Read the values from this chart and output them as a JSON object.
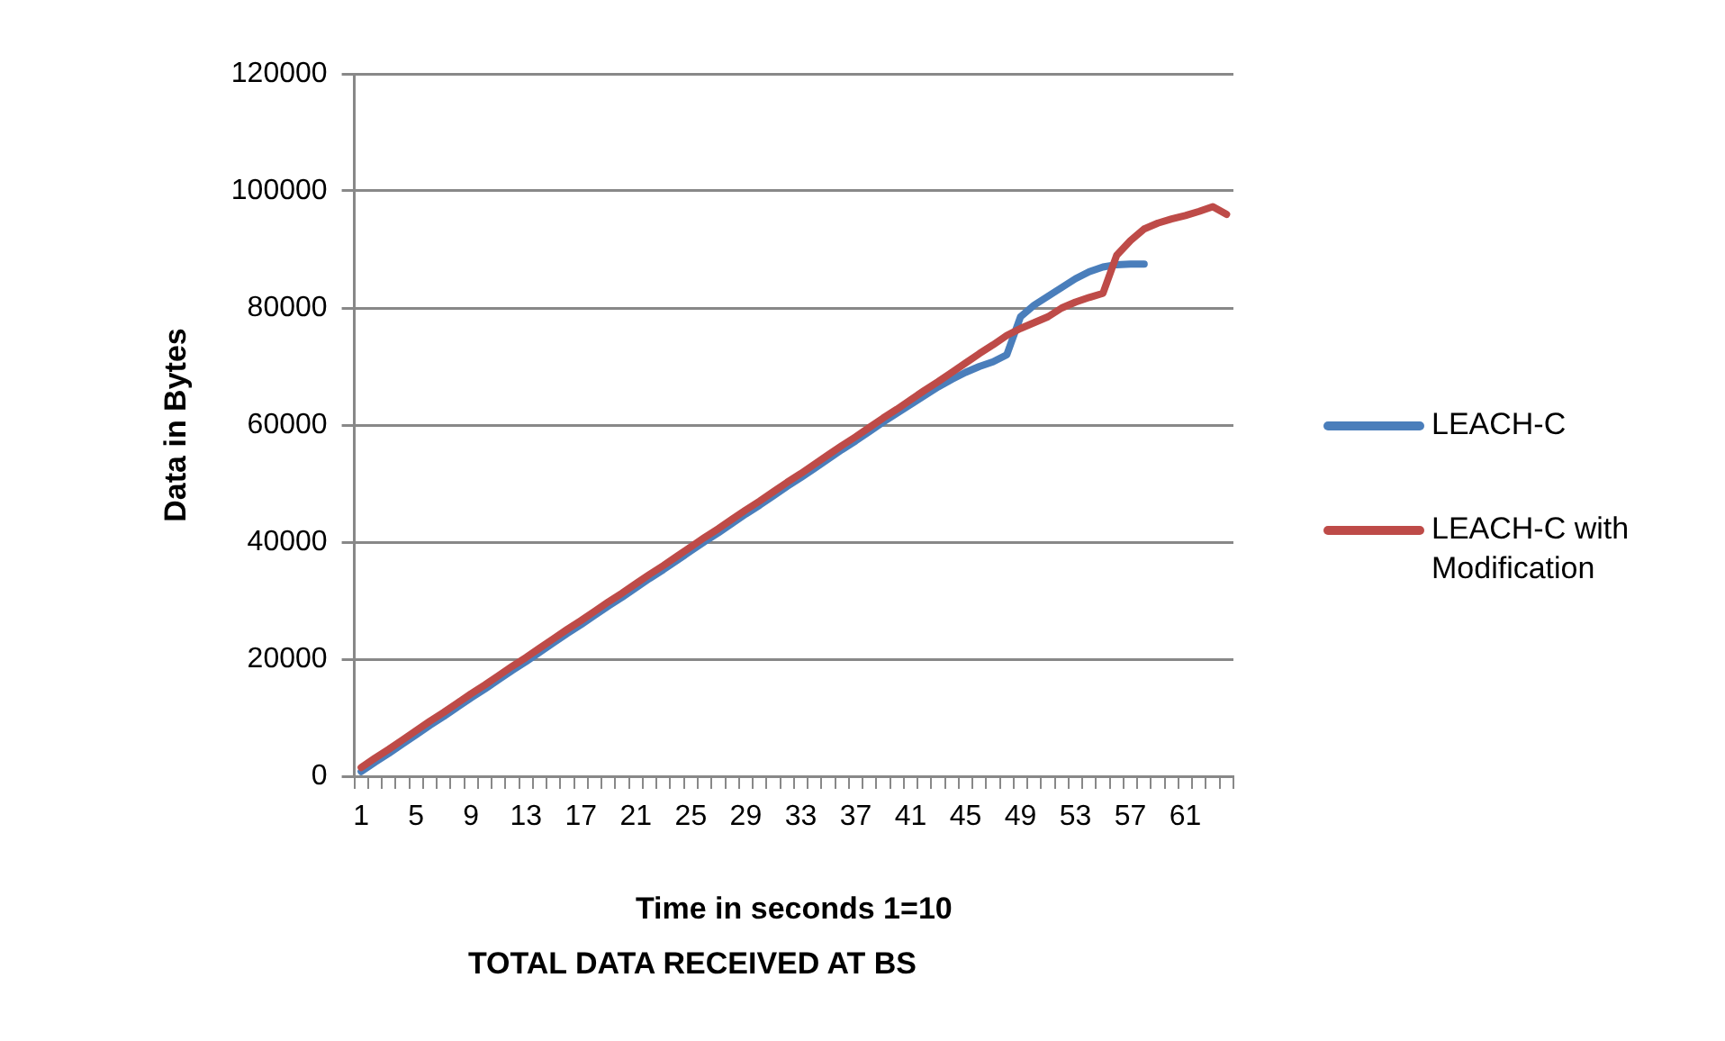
{
  "chart_data": {
    "type": "line",
    "title": "TOTAL DATA RECEIVED AT BS",
    "xlabel": "Time in seconds 1=10",
    "ylabel": "Data in Bytes",
    "categories": [
      "1",
      null,
      null,
      null,
      "5",
      null,
      null,
      null,
      "9",
      null,
      null,
      null,
      "13",
      null,
      null,
      null,
      "17",
      null,
      null,
      null,
      "21",
      null,
      null,
      null,
      "25",
      null,
      null,
      null,
      "29",
      null,
      null,
      null,
      "33",
      null,
      null,
      null,
      "37",
      null,
      null,
      null,
      "41",
      null,
      null,
      null,
      "45",
      null,
      null,
      null,
      "49",
      null,
      null,
      null,
      "53",
      null,
      null,
      null,
      "57",
      null,
      null,
      null,
      "61",
      null,
      null,
      null
    ],
    "series": [
      {
        "name": "LEACH-C",
        "color": "#4a7ebb",
        "values": [
          800,
          2400,
          3900,
          5500,
          7100,
          8700,
          10200,
          11800,
          13400,
          14900,
          16500,
          18100,
          19600,
          21200,
          22800,
          24400,
          25900,
          27500,
          29100,
          30600,
          32200,
          33800,
          35300,
          36900,
          38500,
          40100,
          41600,
          43200,
          44800,
          46300,
          47900,
          49500,
          51000,
          52600,
          54200,
          55800,
          57300,
          58900,
          60500,
          62000,
          63500,
          65000,
          66500,
          67800,
          69000,
          70000,
          70800,
          72000,
          78500,
          80500,
          82000,
          83500,
          85000,
          86200,
          87000,
          87400,
          87500,
          87500,
          null,
          null,
          null,
          null,
          null,
          null
        ]
      },
      {
        "name": "LEACH-C with Modification",
        "color": "#be4b48",
        "values": [
          1500,
          3100,
          4600,
          6200,
          7800,
          9400,
          10900,
          12500,
          14100,
          15600,
          17200,
          18800,
          20300,
          21900,
          23500,
          25100,
          26600,
          28200,
          29800,
          31300,
          32900,
          34500,
          36000,
          37600,
          39200,
          40800,
          42300,
          43900,
          45500,
          47000,
          48600,
          50200,
          51700,
          53300,
          54900,
          56500,
          58000,
          59600,
          61200,
          62700,
          64300,
          65900,
          67400,
          69000,
          70600,
          72200,
          73700,
          75300,
          76500,
          77500,
          78500,
          80000,
          81000,
          81800,
          82500,
          89000,
          91500,
          93500,
          94500,
          95200,
          95800,
          96500,
          97300,
          96000
        ]
      }
    ],
    "ylim": [
      0,
      120000
    ],
    "yticks": [
      0,
      20000,
      40000,
      60000,
      80000,
      100000,
      120000
    ],
    "grid": "y",
    "legend": "right",
    "marker": "none",
    "line_style": "solid"
  }
}
